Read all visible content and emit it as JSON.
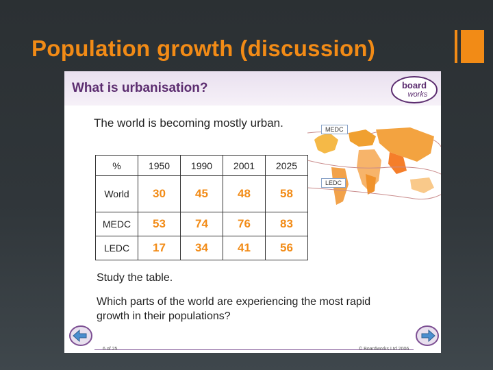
{
  "title": "Population growth (discussion)",
  "slide": {
    "heading": "What is urbanisation?",
    "logo": {
      "line1": "board",
      "line2": "works"
    },
    "intro": "The world is becoming mostly urban.",
    "map": {
      "medc_label": "MEDC",
      "ledc_label": "LEDC"
    },
    "table": {
      "corner": "%",
      "years": [
        "1950",
        "1990",
        "2001",
        "2025"
      ],
      "rows": [
        {
          "label": "World",
          "values": [
            "30",
            "45",
            "48",
            "58"
          ]
        },
        {
          "label": "MEDC",
          "values": [
            "53",
            "74",
            "76",
            "83"
          ]
        },
        {
          "label": "LEDC",
          "values": [
            "17",
            "34",
            "41",
            "56"
          ]
        }
      ]
    },
    "study": "Study the table.",
    "question": "Which parts of the world are experiencing the most rapid growth in their populations?",
    "footer": {
      "slide_number": "6 of 25",
      "copyright": "© Boardworks Ltd 2006"
    }
  },
  "colors": {
    "accent": "#f28b16",
    "heading": "#5b2c6f",
    "background": "#2f3539"
  }
}
